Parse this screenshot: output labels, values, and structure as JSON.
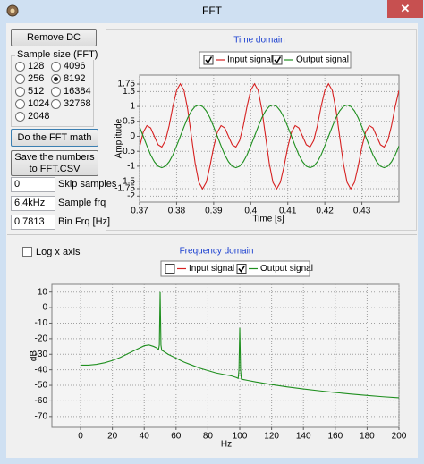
{
  "window": {
    "title": "FFT"
  },
  "controls": {
    "remove_dc": "Remove DC",
    "sample_size": {
      "label": "Sample size (FFT)",
      "options": [
        128,
        4096,
        256,
        8192,
        512,
        16384,
        1024,
        32768,
        2048
      ],
      "selected": 8192
    },
    "fft_button": "Do the FFT math",
    "save_button": [
      "Save the numbers",
      "to FFT.CSV"
    ],
    "fields": [
      {
        "value": "0",
        "label": "Skip samples"
      },
      {
        "value": "6.4kHz",
        "label": "Sample frq"
      },
      {
        "value": "0.7813",
        "label": "Bin Frq [Hz]"
      }
    ],
    "log_x": {
      "label": "Log x axis",
      "checked": false
    }
  },
  "chart_data": [
    {
      "type": "line",
      "title": "Time domain",
      "x_label": "Time [s]",
      "y_label": "Amplitude",
      "x": [
        0.37,
        0.371,
        0.372,
        0.373,
        0.374,
        0.375,
        0.376,
        0.377,
        0.378,
        0.379,
        0.38,
        0.381,
        0.382,
        0.383,
        0.384,
        0.385,
        0.386,
        0.387,
        0.388,
        0.389,
        0.39,
        0.391,
        0.392,
        0.393,
        0.394,
        0.395,
        0.396,
        0.397,
        0.398,
        0.399,
        0.4,
        0.401,
        0.402,
        0.403,
        0.404,
        0.405,
        0.406,
        0.407,
        0.408,
        0.409,
        0.41,
        0.411,
        0.412,
        0.413,
        0.414,
        0.415,
        0.416,
        0.417,
        0.418,
        0.419,
        0.42,
        0.421,
        0.422,
        0.423,
        0.424,
        0.425,
        0.426,
        0.427,
        0.428,
        0.429,
        0.43,
        0.431,
        0.432,
        0.433,
        0.434,
        0.435,
        0.436,
        0.437,
        0.438,
        0.439,
        0.44
      ],
      "series": [
        {
          "name": "Input signal",
          "color": "#d62020",
          "checked": true,
          "values": [
            -0.36,
            0.14,
            0.36,
            0.28,
            0,
            -0.28,
            -0.36,
            -0.14,
            0.36,
            1,
            1.54,
            1.76,
            1.54,
            0.9,
            0,
            -0.9,
            -1.54,
            -1.76,
            -1.54,
            -1,
            -0.36,
            0.14,
            0.36,
            0.28,
            0,
            -0.28,
            -0.36,
            -0.14,
            0.36,
            1,
            1.54,
            1.76,
            1.54,
            0.9,
            0,
            -0.9,
            -1.54,
            -1.76,
            -1.54,
            -1,
            -0.36,
            0.14,
            0.36,
            0.28,
            0,
            -0.28,
            -0.36,
            -0.14,
            0.36,
            1,
            1.54,
            1.76,
            1.54,
            0.9,
            0,
            -0.9,
            -1.54,
            -1.76,
            -1.54,
            -1,
            -0.36,
            0.14,
            0.36,
            0.28,
            0,
            -0.28,
            -0.36,
            -0.14,
            0.36,
            1,
            1.54
          ]
        },
        {
          "name": "Output signal",
          "color": "#1f8f1f",
          "checked": true,
          "values": [
            0.32,
            0,
            -0.32,
            -0.62,
            -0.85,
            -1,
            -1.05,
            -1,
            -0.85,
            -0.62,
            -0.32,
            0,
            0.32,
            0.62,
            0.85,
            1,
            1.05,
            1,
            0.85,
            0.62,
            0.32,
            0,
            -0.32,
            -0.62,
            -0.85,
            -1,
            -1.05,
            -1,
            -0.85,
            -0.62,
            -0.32,
            0,
            0.32,
            0.62,
            0.85,
            1,
            1.05,
            1,
            0.85,
            0.62,
            0.32,
            0,
            -0.32,
            -0.62,
            -0.85,
            -1,
            -1.05,
            -1,
            -0.85,
            -0.62,
            -0.32,
            0,
            0.32,
            0.62,
            0.85,
            1,
            1.05,
            1,
            0.85,
            0.62,
            0.32,
            0,
            -0.32,
            -0.62,
            -0.85,
            -1,
            -1.05,
            -1,
            -0.85,
            -0.62,
            -0.32
          ]
        }
      ],
      "xlim": [
        0.37,
        0.44
      ],
      "xticks": [
        0.37,
        0.38,
        0.39,
        0.4,
        0.41,
        0.42,
        0.43
      ],
      "ylim": [
        -2.2,
        2.05
      ],
      "yticks": [
        -2,
        -1.75,
        -1.5,
        -1,
        -0.5,
        0,
        0.5,
        1,
        1.5,
        1.75
      ],
      "grid": true
    },
    {
      "type": "line",
      "title": "Frequency domain",
      "x_label": "Hz",
      "y_label": "dB",
      "x": [
        0,
        5,
        10,
        15,
        20,
        25,
        30,
        35,
        40,
        43,
        46,
        48,
        49,
        49.5,
        50,
        50.5,
        51,
        52,
        55,
        60,
        65,
        70,
        75,
        80,
        85,
        90,
        95,
        98,
        99,
        99.5,
        100,
        100.5,
        101,
        102,
        105,
        110,
        120,
        130,
        140,
        150,
        160,
        170,
        180,
        190,
        200
      ],
      "hidden_series": [
        {
          "name": "Input signal",
          "color": "#d62020",
          "checked": false
        }
      ],
      "series": [
        {
          "name": "Output signal",
          "color": "#1f8f1f",
          "checked": true,
          "values": [
            -37,
            -37,
            -36.5,
            -35.5,
            -34,
            -32,
            -29.5,
            -27,
            -24.5,
            -24,
            -25,
            -26,
            -27,
            -24,
            10,
            -24,
            -27.5,
            -28,
            -30,
            -32.5,
            -35,
            -37,
            -39,
            -40.5,
            -42,
            -43,
            -44,
            -45,
            -45.5,
            -40,
            -13,
            -40,
            -46,
            -46.2,
            -46.8,
            -47.8,
            -49.5,
            -51,
            -52.3,
            -53.5,
            -54.6,
            -55.6,
            -56.5,
            -57.3,
            -58
          ]
        }
      ],
      "xlim": [
        -18,
        200
      ],
      "xticks": [
        0,
        20,
        40,
        60,
        80,
        100,
        120,
        140,
        160,
        180,
        200
      ],
      "ylim": [
        -77,
        15
      ],
      "yticks": [
        -70,
        -60,
        -50,
        -40,
        -30,
        -20,
        -10,
        0,
        10
      ],
      "grid": true
    }
  ]
}
